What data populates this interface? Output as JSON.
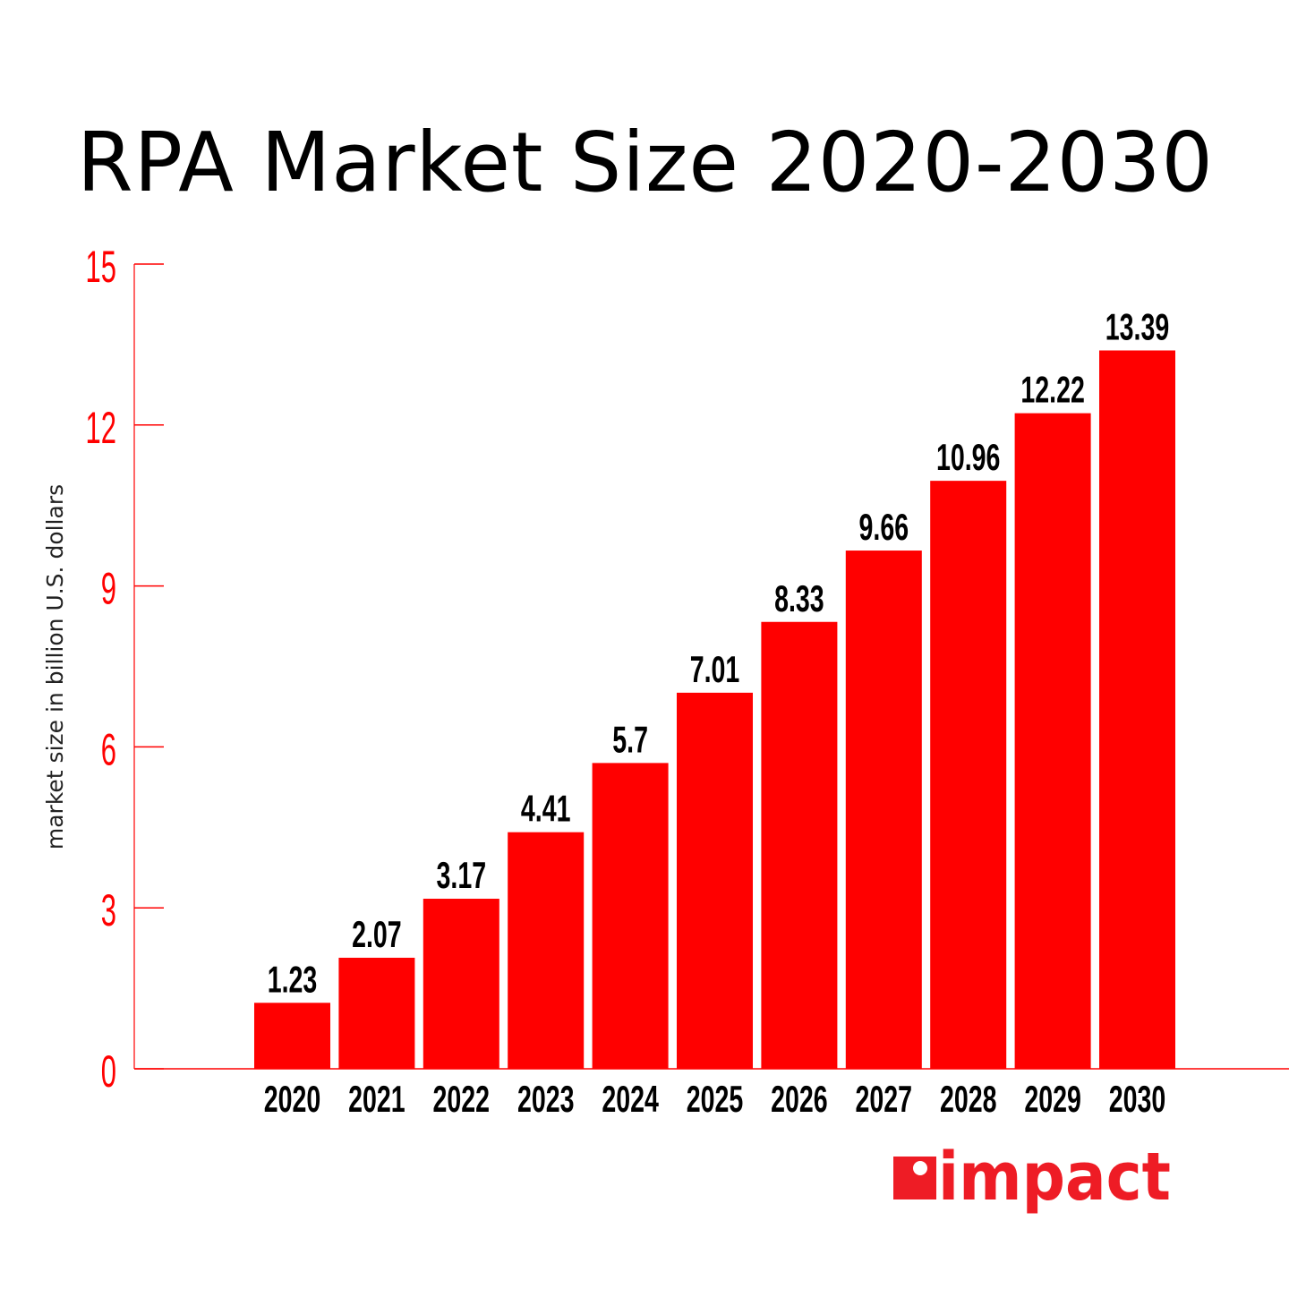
{
  "chart_data": {
    "type": "bar",
    "title": "RPA Market Size 2020-2030",
    "xlabel": "",
    "ylabel": "market size in billion U.S. dollars",
    "categories": [
      "2020",
      "2021",
      "2022",
      "2023",
      "2024",
      "2025",
      "2026",
      "2027",
      "2028",
      "2029",
      "2030"
    ],
    "values": [
      1.23,
      2.07,
      3.17,
      4.41,
      5.7,
      7.01,
      8.33,
      9.66,
      10.96,
      12.22,
      13.39
    ],
    "data_labels": [
      "1.23",
      "2.07",
      "3.17",
      "4.41",
      "5.7",
      "7.01",
      "8.33",
      "9.66",
      "10.96",
      "12.22",
      "13.39"
    ],
    "ylim": [
      0,
      15
    ],
    "yticks": [
      "0",
      "3",
      "6",
      "9",
      "12",
      "15"
    ],
    "grid": false,
    "legend": "none",
    "colors": {
      "bar": "#ff0000",
      "axis": "#ff0000",
      "tick_label": "#ff0000",
      "text": "#000000"
    }
  },
  "logo": {
    "text": "impact",
    "color": "#ee1c25"
  }
}
